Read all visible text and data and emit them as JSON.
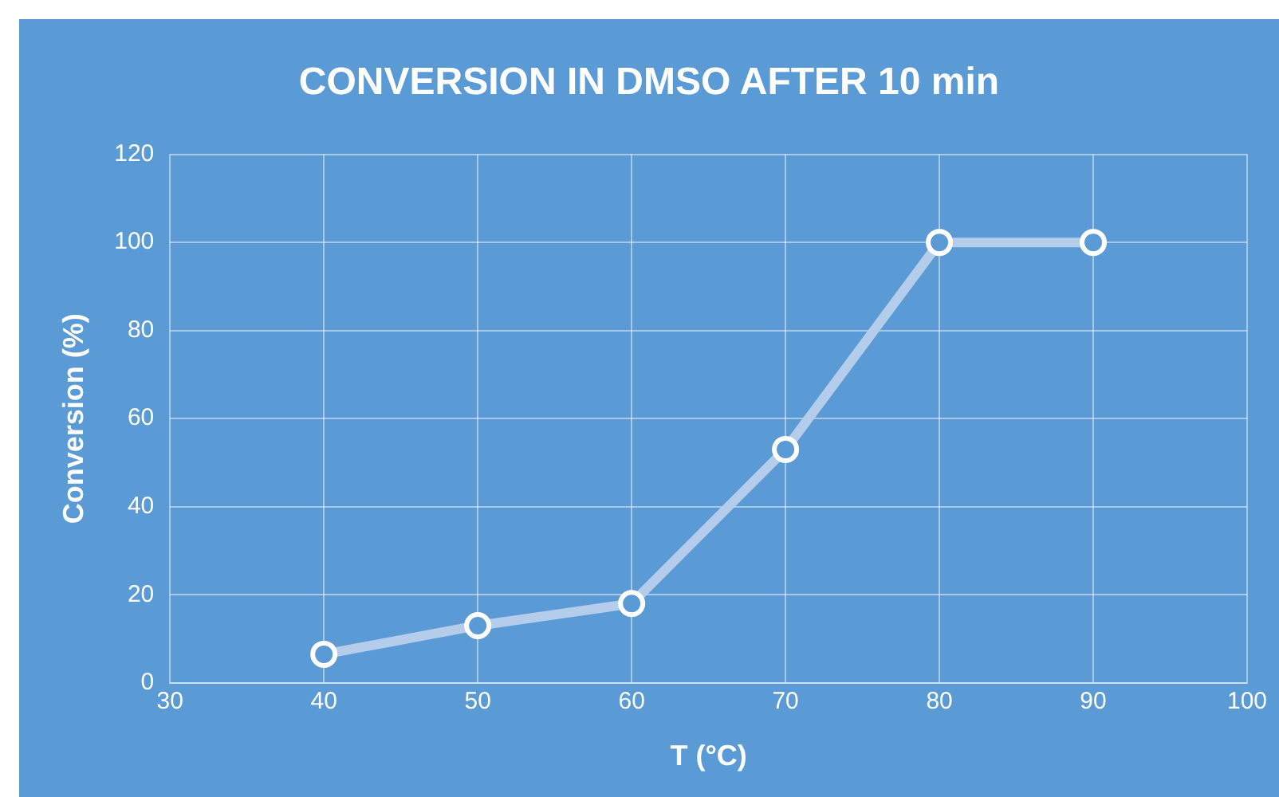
{
  "chart_data": {
    "type": "line",
    "title": "CONVERSION IN DMSO AFTER 10 min",
    "xlabel": "T (°C)",
    "ylabel": "Conversion (%)",
    "x": [
      40,
      50,
      60,
      70,
      80,
      90
    ],
    "series": [
      {
        "color": "#b4cdea",
        "values": [
          6.5,
          13,
          18,
          53,
          100,
          100
        ]
      }
    ],
    "xlim": [
      30,
      100
    ],
    "xticks": [
      30,
      40,
      50,
      60,
      70,
      80,
      90,
      100
    ],
    "ylim": [
      0,
      120
    ],
    "yticks": [
      0,
      20,
      40,
      60,
      80,
      100,
      120
    ],
    "grid": true,
    "legend": false,
    "marker": "circle",
    "line_style": "solid"
  }
}
